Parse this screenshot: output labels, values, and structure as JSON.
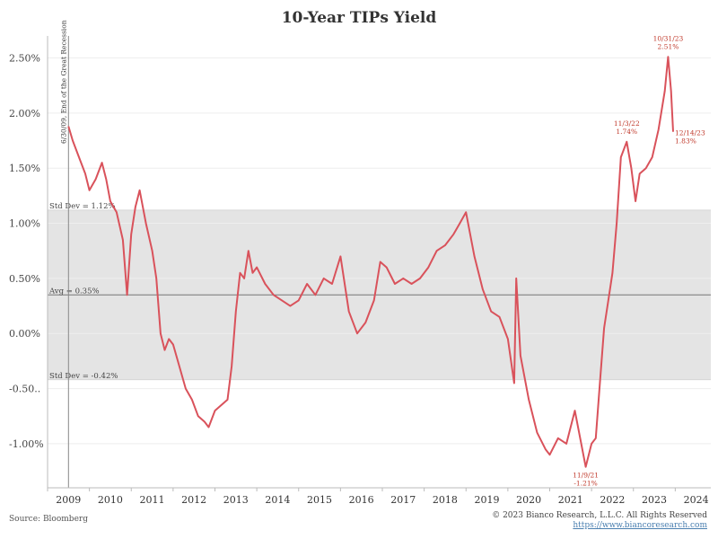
{
  "title": "10-Year TIPs Yield",
  "source": "Source: Bloomberg",
  "copyright": "© 2023 Bianco Research, L.L.C. All Rights Reserved",
  "website": "https://www.biancoresearch.com",
  "colors": {
    "line": "#d9525b",
    "band": "#e4e4e4",
    "grid": "#eeeeee",
    "annotation": "#c0392b"
  },
  "chart_data": {
    "type": "line",
    "title": "10-Year TIPs Yield",
    "xlim": [
      2009,
      2024.85
    ],
    "ylim": [
      -1.4,
      2.7
    ],
    "y_ticks": [
      2.5,
      2.0,
      1.5,
      1.0,
      0.5,
      0.0,
      -0.5,
      -1.0
    ],
    "y_tick_labels": [
      "2.50%",
      "2.00%",
      "1.50%",
      "1.00%",
      "0.50%",
      "0.00%",
      "-0.50..",
      "-1.00%"
    ],
    "x_ticks": [
      2009,
      2010,
      2011,
      2012,
      2013,
      2014,
      2015,
      2016,
      2017,
      2018,
      2019,
      2020,
      2021,
      2022,
      2023,
      2024
    ],
    "x_tick_labels": [
      "2009",
      "2010",
      "2011",
      "2012",
      "2013",
      "2014",
      "2015",
      "2016",
      "2017",
      "2018",
      "2019",
      "2020",
      "2021",
      "2022",
      "2023",
      "2024"
    ],
    "grid": true,
    "band": {
      "upper": 1.12,
      "lower": -0.42
    },
    "reference_lines": [
      {
        "value": 0.35,
        "label": "Avg = 0.35%"
      },
      {
        "value": 1.12,
        "label": "Std Dev = 1.12%"
      },
      {
        "value": -0.42,
        "label": "Std Dev = -0.42%"
      }
    ],
    "vertical_marker": {
      "x": 2009.5,
      "label": "6/30/09, End of the Great Recession"
    },
    "annotations": [
      {
        "x": 2022.84,
        "y": 1.74,
        "date": "11/3/22",
        "value": "1.74%"
      },
      {
        "x": 2023.83,
        "y": 2.51,
        "date": "10/31/23",
        "value": "2.51%"
      },
      {
        "x": 2023.95,
        "y": 1.83,
        "date": "12/14/23",
        "value": "1.83%"
      },
      {
        "x": 2021.86,
        "y": -1.21,
        "date": "11/9/21",
        "value": "-1.21%"
      }
    ],
    "series": [
      {
        "x": [
          2009.5,
          2009.6,
          2009.75,
          2009.9,
          2010.0,
          2010.15,
          2010.3,
          2010.4,
          2010.5,
          2010.65,
          2010.8,
          2010.9,
          2011.0,
          2011.1,
          2011.2,
          2011.35,
          2011.5,
          2011.6,
          2011.7,
          2011.8,
          2011.9,
          2012.0,
          2012.15,
          2012.3,
          2012.45,
          2012.6,
          2012.75,
          2012.85,
          2013.0,
          2013.15,
          2013.3,
          2013.4,
          2013.5,
          2013.6,
          2013.7,
          2013.8,
          2013.9,
          2014.0,
          2014.2,
          2014.4,
          2014.6,
          2014.8,
          2015.0,
          2015.2,
          2015.4,
          2015.6,
          2015.8,
          2016.0,
          2016.2,
          2016.4,
          2016.6,
          2016.8,
          2016.95,
          2017.1,
          2017.3,
          2017.5,
          2017.7,
          2017.9,
          2018.1,
          2018.3,
          2018.5,
          2018.7,
          2018.85,
          2019.0,
          2019.2,
          2019.4,
          2019.6,
          2019.8,
          2020.0,
          2020.15,
          2020.2,
          2020.3,
          2020.5,
          2020.7,
          2020.9,
          2021.0,
          2021.2,
          2021.4,
          2021.6,
          2021.86,
          2022.0,
          2022.1,
          2022.2,
          2022.3,
          2022.4,
          2022.5,
          2022.6,
          2022.7,
          2022.84,
          2022.95,
          2023.05,
          2023.15,
          2023.3,
          2023.45,
          2023.6,
          2023.75,
          2023.83,
          2023.9,
          2023.95
        ],
        "y": [
          1.88,
          1.75,
          1.6,
          1.45,
          1.3,
          1.4,
          1.55,
          1.4,
          1.2,
          1.1,
          0.85,
          0.35,
          0.9,
          1.15,
          1.3,
          1.0,
          0.75,
          0.5,
          0.0,
          -0.15,
          -0.05,
          -0.1,
          -0.3,
          -0.5,
          -0.6,
          -0.75,
          -0.8,
          -0.85,
          -0.7,
          -0.65,
          -0.6,
          -0.3,
          0.2,
          0.55,
          0.5,
          0.75,
          0.55,
          0.6,
          0.45,
          0.35,
          0.3,
          0.25,
          0.3,
          0.45,
          0.35,
          0.5,
          0.45,
          0.7,
          0.2,
          0.0,
          0.1,
          0.3,
          0.65,
          0.6,
          0.45,
          0.5,
          0.45,
          0.5,
          0.6,
          0.75,
          0.8,
          0.9,
          1.0,
          1.1,
          0.7,
          0.4,
          0.2,
          0.15,
          -0.05,
          -0.45,
          0.5,
          -0.2,
          -0.6,
          -0.9,
          -1.05,
          -1.1,
          -0.95,
          -1.0,
          -0.7,
          -1.21,
          -1.0,
          -0.95,
          -0.45,
          0.05,
          0.3,
          0.55,
          1.0,
          1.6,
          1.74,
          1.5,
          1.2,
          1.45,
          1.5,
          1.6,
          1.85,
          2.2,
          2.51,
          2.2,
          1.83
        ]
      }
    ]
  }
}
